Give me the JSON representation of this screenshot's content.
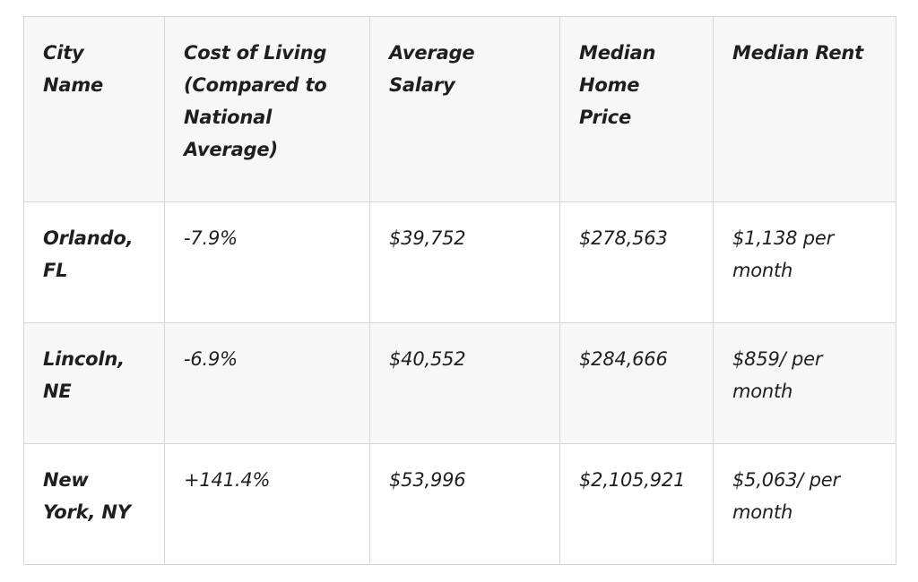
{
  "table": {
    "headers": [
      "City Name",
      "Cost of Living (Compared to National Average)",
      "Average Salary",
      "Median Home Price",
      "Median Rent"
    ],
    "rows": [
      {
        "city": "Orlando, FL",
        "cost_of_living": "-7.9%",
        "average_salary": "$39,752",
        "median_home_price": "$278,563",
        "median_rent": "$1,138",
        "rent_unit": " per month"
      },
      {
        "city": "Lincoln, NE",
        "cost_of_living": "-6.9%",
        "average_salary": "$40,552",
        "median_home_price": "$284,666",
        "median_rent": "$859/",
        "rent_unit": " per month"
      },
      {
        "city": "New York, NY",
        "cost_of_living": "+141.4%",
        "average_salary": "$53,996",
        "median_home_price": "$2,105,921",
        "median_rent": "$5,063/",
        "rent_unit": " per month"
      }
    ]
  }
}
